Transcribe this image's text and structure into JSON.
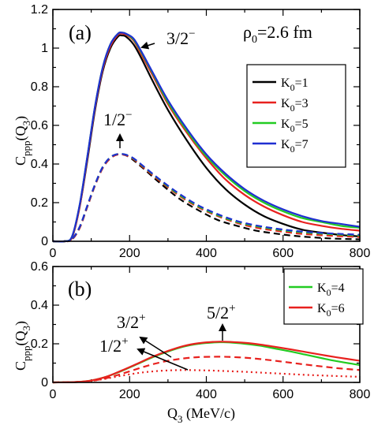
{
  "chart_data": [
    {
      "panel": "(a)",
      "type": "line",
      "ylabel": "C_ppp(Q_3)",
      "xlim": [
        0,
        800
      ],
      "ylim": [
        0,
        1.2
      ],
      "xticks": [
        "0",
        "200",
        "400",
        "600",
        "800"
      ],
      "yticks": [
        "0",
        "0.2",
        "0.4",
        "0.6",
        "0.8",
        "1",
        "1.2"
      ],
      "annotation_text": "ρ0=2.6 fm",
      "legend": {
        "placement": "right",
        "entries": [
          {
            "label": "K0=1",
            "color": "#000000"
          },
          {
            "label": "K0=3",
            "color": "#e8211e"
          },
          {
            "label": "K0=5",
            "color": "#22cc22"
          },
          {
            "label": "K0=7",
            "color": "#1f2fd1"
          }
        ]
      },
      "curve_labels": [
        {
          "text": "3/2−",
          "points_to_Q3": 182,
          "points_to_C": 1.07
        },
        {
          "text": "1/2−",
          "points_to_Q3": 178,
          "points_to_C": 0.47
        }
      ],
      "series": [
        {
          "name": "3/2−, K0=1",
          "color": "#000000",
          "dash": false,
          "x": [
            0,
            30,
            50,
            70,
            90,
            110,
            130,
            150,
            170,
            180,
            190,
            210,
            230,
            260,
            300,
            350,
            400,
            450,
            500,
            550,
            600,
            650,
            700,
            750,
            800
          ],
          "y": [
            0,
            0,
            0.02,
            0.18,
            0.42,
            0.68,
            0.88,
            1.0,
            1.06,
            1.065,
            1.06,
            1.02,
            0.95,
            0.83,
            0.68,
            0.52,
            0.38,
            0.27,
            0.19,
            0.13,
            0.09,
            0.06,
            0.045,
            0.033,
            0.025
          ]
        },
        {
          "name": "3/2−, K0=3",
          "color": "#e8211e",
          "dash": false,
          "x": [
            0,
            30,
            50,
            70,
            90,
            110,
            130,
            150,
            170,
            180,
            190,
            210,
            230,
            260,
            300,
            350,
            400,
            450,
            500,
            550,
            600,
            650,
            700,
            750,
            800
          ],
          "y": [
            0,
            0,
            0.02,
            0.18,
            0.43,
            0.69,
            0.89,
            1.01,
            1.07,
            1.075,
            1.07,
            1.04,
            0.97,
            0.86,
            0.71,
            0.56,
            0.43,
            0.32,
            0.24,
            0.18,
            0.135,
            0.1,
            0.08,
            0.065,
            0.055
          ]
        },
        {
          "name": "3/2−, K0=5",
          "color": "#22cc22",
          "dash": false,
          "x": [
            0,
            30,
            50,
            70,
            90,
            110,
            130,
            150,
            170,
            180,
            190,
            210,
            230,
            260,
            300,
            350,
            400,
            450,
            500,
            550,
            600,
            650,
            700,
            750,
            800
          ],
          "y": [
            0,
            0,
            0.025,
            0.19,
            0.44,
            0.7,
            0.9,
            1.02,
            1.075,
            1.08,
            1.075,
            1.045,
            0.98,
            0.87,
            0.72,
            0.57,
            0.44,
            0.34,
            0.26,
            0.2,
            0.155,
            0.12,
            0.1,
            0.08,
            0.07
          ]
        },
        {
          "name": "3/2−, K0=7",
          "color": "#1f2fd1",
          "dash": false,
          "x": [
            0,
            30,
            50,
            70,
            90,
            110,
            130,
            150,
            170,
            180,
            190,
            210,
            230,
            260,
            300,
            350,
            400,
            450,
            500,
            550,
            600,
            650,
            700,
            750,
            800
          ],
          "y": [
            0,
            0,
            0.025,
            0.19,
            0.44,
            0.7,
            0.9,
            1.02,
            1.075,
            1.08,
            1.075,
            1.05,
            0.985,
            0.875,
            0.73,
            0.58,
            0.45,
            0.35,
            0.27,
            0.21,
            0.165,
            0.13,
            0.105,
            0.09,
            0.075
          ]
        },
        {
          "name": "1/2−, K0=1",
          "color": "#000000",
          "dash": true,
          "x": [
            0,
            30,
            50,
            70,
            90,
            110,
            130,
            150,
            170,
            190,
            210,
            240,
            280,
            330,
            380,
            430,
            480,
            530,
            580,
            630,
            680,
            730,
            800
          ],
          "y": [
            0,
            0,
            0.01,
            0.07,
            0.18,
            0.29,
            0.38,
            0.43,
            0.45,
            0.445,
            0.42,
            0.37,
            0.3,
            0.22,
            0.16,
            0.11,
            0.08,
            0.055,
            0.04,
            0.028,
            0.02,
            0.014,
            0.01
          ]
        },
        {
          "name": "1/2−, K0=3",
          "color": "#e8211e",
          "dash": true,
          "x": [
            0,
            30,
            50,
            70,
            90,
            110,
            130,
            150,
            170,
            190,
            210,
            240,
            280,
            330,
            380,
            430,
            480,
            530,
            580,
            630,
            680,
            730,
            800
          ],
          "y": [
            0,
            0,
            0.01,
            0.07,
            0.18,
            0.29,
            0.38,
            0.43,
            0.45,
            0.445,
            0.425,
            0.375,
            0.31,
            0.235,
            0.175,
            0.13,
            0.095,
            0.07,
            0.055,
            0.042,
            0.034,
            0.028,
            0.022
          ]
        },
        {
          "name": "1/2−, K0=5",
          "color": "#22cc22",
          "dash": true,
          "x": [
            0,
            30,
            50,
            70,
            90,
            110,
            130,
            150,
            170,
            190,
            210,
            240,
            280,
            330,
            380,
            430,
            480,
            530,
            580,
            630,
            680,
            730,
            800
          ],
          "y": [
            0,
            0,
            0.012,
            0.075,
            0.185,
            0.295,
            0.385,
            0.435,
            0.452,
            0.448,
            0.428,
            0.38,
            0.315,
            0.24,
            0.18,
            0.135,
            0.1,
            0.078,
            0.062,
            0.05,
            0.042,
            0.036,
            0.03
          ]
        },
        {
          "name": "1/2−, K0=7",
          "color": "#1f2fd1",
          "dash": true,
          "x": [
            0,
            30,
            50,
            70,
            90,
            110,
            130,
            150,
            170,
            190,
            210,
            240,
            280,
            330,
            380,
            430,
            480,
            530,
            580,
            630,
            680,
            730,
            800
          ],
          "y": [
            0,
            0,
            0.012,
            0.075,
            0.185,
            0.295,
            0.385,
            0.435,
            0.452,
            0.448,
            0.43,
            0.382,
            0.318,
            0.245,
            0.185,
            0.14,
            0.105,
            0.082,
            0.066,
            0.054,
            0.046,
            0.04,
            0.034
          ]
        }
      ]
    },
    {
      "panel": "(b)",
      "type": "line",
      "xlabel": "Q3 (MeV/c)",
      "ylabel": "C_ppp(Q_3)",
      "xlim": [
        0,
        800
      ],
      "ylim": [
        0,
        0.6
      ],
      "xticks": [
        "0",
        "200",
        "400",
        "600",
        "800"
      ],
      "yticks": [
        "0",
        "0.2",
        "0.4",
        "0.6"
      ],
      "legend": {
        "placement": "top-right",
        "entries": [
          {
            "label": "K0=4",
            "color": "#22cc22"
          },
          {
            "label": "K0=6",
            "color": "#e8211e"
          }
        ]
      },
      "curve_labels": [
        {
          "text": "5/2+",
          "points_to_Q3": 440,
          "points_to_C": 0.22
        },
        {
          "text": "3/2+",
          "points_to_Q3": 300,
          "points_to_C": 0.16
        },
        {
          "text": "1/2+",
          "points_to_Q3": 345,
          "points_to_C": 0.085
        }
      ],
      "series": [
        {
          "name": "5/2+, K0=4",
          "color": "#22cc22",
          "dash": "solid",
          "x": [
            0,
            60,
            100,
            140,
            180,
            220,
            260,
            300,
            340,
            380,
            420,
            440,
            460,
            500,
            540,
            580,
            620,
            660,
            700,
            740,
            800
          ],
          "y": [
            0,
            0.002,
            0.01,
            0.03,
            0.06,
            0.095,
            0.13,
            0.16,
            0.185,
            0.2,
            0.207,
            0.208,
            0.207,
            0.2,
            0.19,
            0.175,
            0.16,
            0.143,
            0.126,
            0.11,
            0.09
          ]
        },
        {
          "name": "5/2+, K0=6",
          "color": "#e8211e",
          "dash": "solid",
          "x": [
            0,
            60,
            100,
            140,
            180,
            220,
            260,
            300,
            340,
            380,
            420,
            440,
            460,
            500,
            540,
            580,
            620,
            660,
            700,
            740,
            800
          ],
          "y": [
            0,
            0.002,
            0.01,
            0.03,
            0.062,
            0.097,
            0.133,
            0.163,
            0.188,
            0.203,
            0.21,
            0.211,
            0.21,
            0.205,
            0.196,
            0.184,
            0.171,
            0.157,
            0.143,
            0.13,
            0.112
          ]
        },
        {
          "name": "3/2+, K0=6",
          "color": "#e8211e",
          "dash": "dashed",
          "x": [
            0,
            60,
            100,
            140,
            180,
            220,
            260,
            300,
            340,
            380,
            420,
            440,
            460,
            500,
            540,
            580,
            620,
            660,
            700,
            740,
            800
          ],
          "y": [
            0,
            0.002,
            0.008,
            0.022,
            0.045,
            0.07,
            0.094,
            0.112,
            0.124,
            0.131,
            0.133,
            0.133,
            0.132,
            0.128,
            0.121,
            0.112,
            0.102,
            0.092,
            0.083,
            0.074,
            0.064
          ]
        },
        {
          "name": "1/2+, K0=6",
          "color": "#e8211e",
          "dash": "dotted",
          "x": [
            0,
            60,
            100,
            140,
            180,
            220,
            260,
            300,
            340,
            380,
            420,
            460,
            500,
            540,
            580,
            620,
            660,
            700,
            740,
            800
          ],
          "y": [
            0,
            0.002,
            0.008,
            0.02,
            0.035,
            0.048,
            0.057,
            0.062,
            0.064,
            0.063,
            0.061,
            0.058,
            0.055,
            0.051,
            0.047,
            0.043,
            0.039,
            0.036,
            0.033,
            0.029
          ]
        }
      ]
    }
  ]
}
